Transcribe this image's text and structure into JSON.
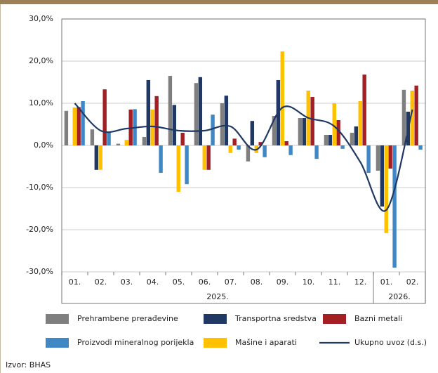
{
  "chart_data": {
    "type": "bar",
    "category_groups": [
      {
        "name": "2025.",
        "categories": [
          "01.",
          "02.",
          "03.",
          "04.",
          "05.",
          "06.",
          "07.",
          "08.",
          "09.",
          "10.",
          "11.",
          "12."
        ]
      },
      {
        "name": "2026.",
        "categories": [
          "01.",
          "02."
        ]
      }
    ],
    "series": [
      {
        "name": "Prehrambene prerađevine",
        "color": "#7f7f7f",
        "values": [
          8.2,
          3.8,
          0.4,
          2.0,
          16.5,
          14.8,
          10.0,
          -3.8,
          7.0,
          6.5,
          2.5,
          3.0,
          -6.0,
          13.2
        ]
      },
      {
        "name": "Transportna sredstva",
        "color": "#1f3864",
        "values": [
          0,
          -5.8,
          0,
          15.5,
          9.6,
          16.2,
          11.8,
          5.8,
          15.5,
          6.5,
          2.5,
          4.5,
          -14.5,
          8.0
        ]
      },
      {
        "name": "Mašine i aparati",
        "color": "#ffc000",
        "values": [
          9.0,
          -5.8,
          1.3,
          8.5,
          -11.0,
          -5.8,
          -1.8,
          -1.8,
          22.3,
          13.0,
          10.0,
          10.5,
          -20.8,
          13.0
        ]
      },
      {
        "name": "Bazni metali",
        "color": "#a31f24",
        "values": [
          9.1,
          13.3,
          8.5,
          11.7,
          3.0,
          -5.8,
          1.6,
          0.8,
          1.0,
          11.5,
          6.0,
          16.8,
          -5.5,
          14.2
        ]
      },
      {
        "name": "Proizvodi mineralnog porijekla",
        "color": "#3f88c5",
        "values": [
          10.5,
          3.2,
          8.6,
          -6.5,
          -9.2,
          7.3,
          -1.0,
          -2.8,
          -2.3,
          -3.2,
          -0.8,
          -6.5,
          -29.0,
          -1.0
        ]
      },
      {
        "name": "Ukupno uvoz (d.s.)",
        "type": "line",
        "color": "#1f3864",
        "values": [
          10.0,
          3.5,
          4.0,
          4.5,
          3.5,
          3.5,
          4.5,
          -1.0,
          9.0,
          6.5,
          4.5,
          -4.0,
          -15.3,
          8.5
        ]
      }
    ],
    "legend_order": [
      0,
      1,
      3,
      4,
      2,
      5
    ],
    "ylim": [
      -30,
      30
    ],
    "yticks": [
      {
        "value": -30,
        "label": "-30,0%"
      },
      {
        "value": -20,
        "label": "-20,0%"
      },
      {
        "value": -10,
        "label": "-10,0%"
      },
      {
        "value": 0,
        "label": "0,0%"
      },
      {
        "value": 10,
        "label": "10,0%"
      },
      {
        "value": 20,
        "label": "20,0%"
      },
      {
        "value": 30,
        "label": "30,0%"
      }
    ],
    "grid": true,
    "source": "Izvor: BHAS"
  }
}
